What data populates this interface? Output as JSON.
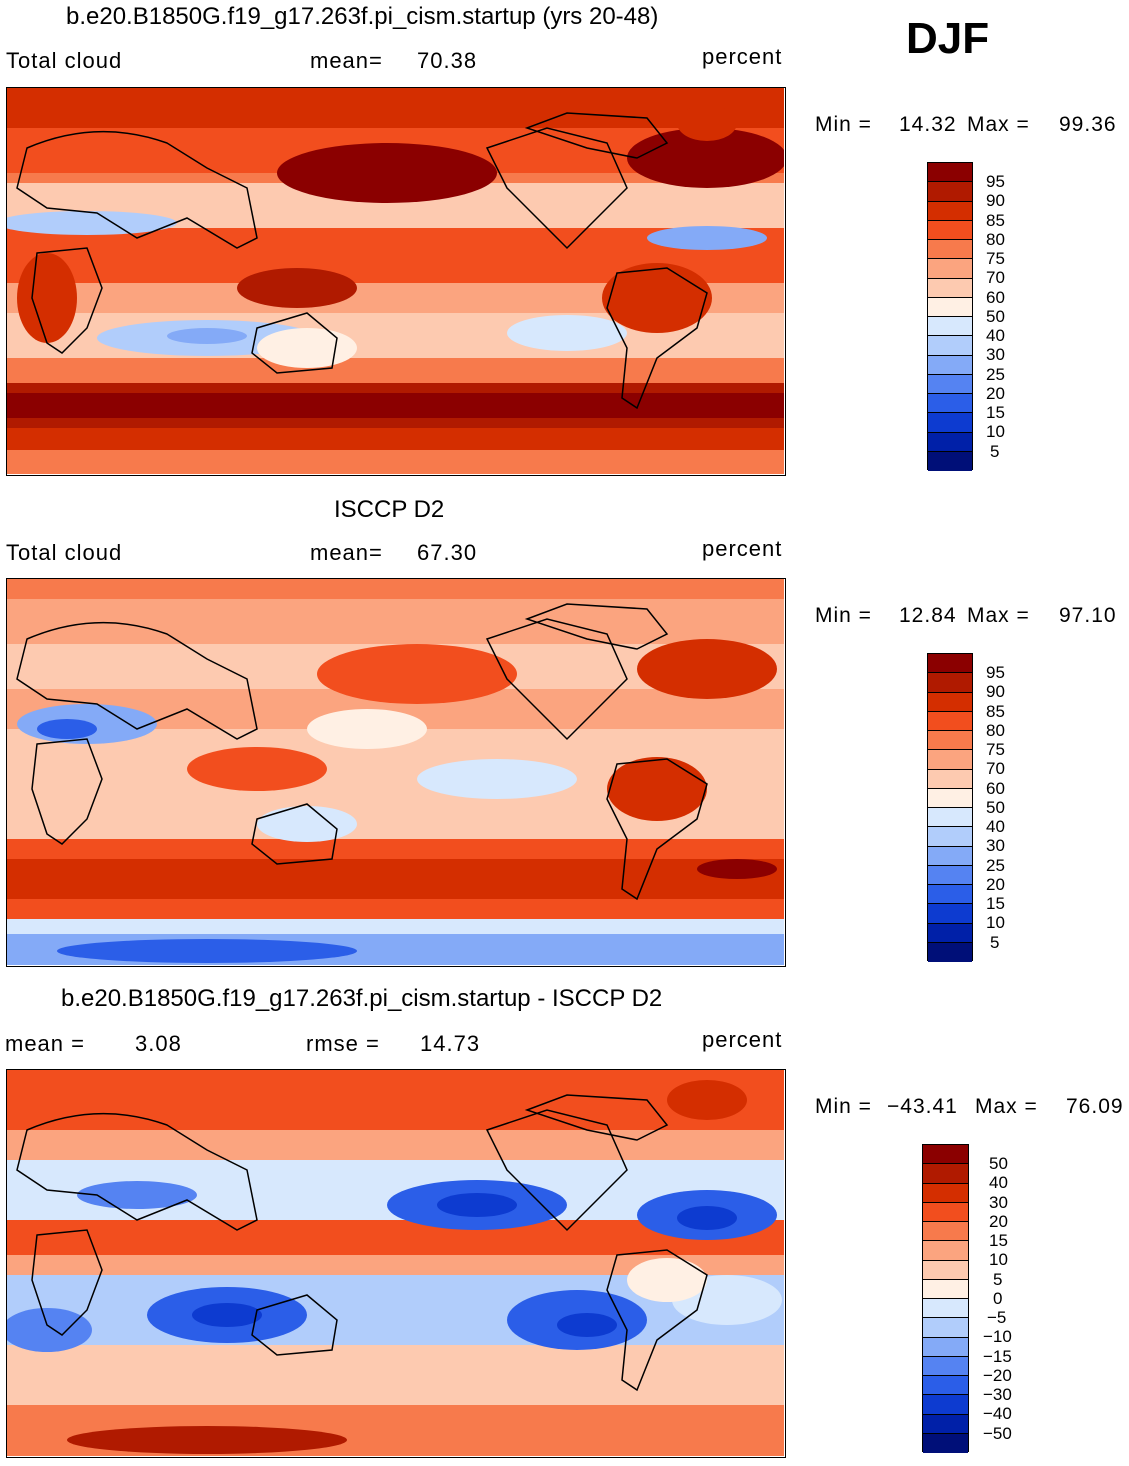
{
  "season": "DJF",
  "panels": [
    {
      "title": "b.e20.B1850G.f19_g17.263f.pi_cism.startup (yrs 20-48)",
      "left_label": "Total cloud",
      "stat1": "mean=",
      "stat1_value": "70.38",
      "stat2": "",
      "stat2_value": "",
      "units": "percent",
      "min_label": "Min =",
      "min_value": "14.32",
      "max_label": "Max =",
      "max_value": "99.36",
      "levels": [
        "95",
        "90",
        "85",
        "80",
        "75",
        "70",
        "60",
        "50",
        "40",
        "30",
        "25",
        "20",
        "15",
        "10",
        "5"
      ]
    },
    {
      "title": "ISCCP D2",
      "left_label": "Total cloud",
      "stat1": "mean=",
      "stat1_value": "67.30",
      "stat2": "",
      "stat2_value": "",
      "units": "percent",
      "min_label": "Min =",
      "min_value": "12.84",
      "max_label": "Max =",
      "max_value": "97.10",
      "levels": [
        "95",
        "90",
        "85",
        "80",
        "75",
        "70",
        "60",
        "50",
        "40",
        "30",
        "25",
        "20",
        "15",
        "10",
        "5"
      ]
    },
    {
      "title": "b.e20.B1850G.f19_g17.263f.pi_cism.startup - ISCCP D2",
      "left_label": "mean =",
      "stat1": "",
      "stat1_value": "3.08",
      "stat2": "rmse =",
      "stat2_value": "14.73",
      "units": "percent",
      "min_label": "Min =",
      "min_value": "−43.41",
      "max_label": "Max =",
      "max_value": "76.09",
      "levels": [
        "50",
        "40",
        "30",
        "20",
        "15",
        "10",
        "5",
        "0",
        "−5",
        "−10",
        "−15",
        "−20",
        "−30",
        "−40",
        "−50"
      ]
    }
  ],
  "colorbar_colors": [
    "#8b0000",
    "#b01a00",
    "#d42e00",
    "#f24e1e",
    "#f77a4c",
    "#fba47f",
    "#fdcab0",
    "#fff0e4",
    "#d7e8fd",
    "#b1cdfb",
    "#84aaf7",
    "#5583f2",
    "#2b5ee8",
    "#0d3bd0",
    "#0020a8",
    "#000f78"
  ]
}
